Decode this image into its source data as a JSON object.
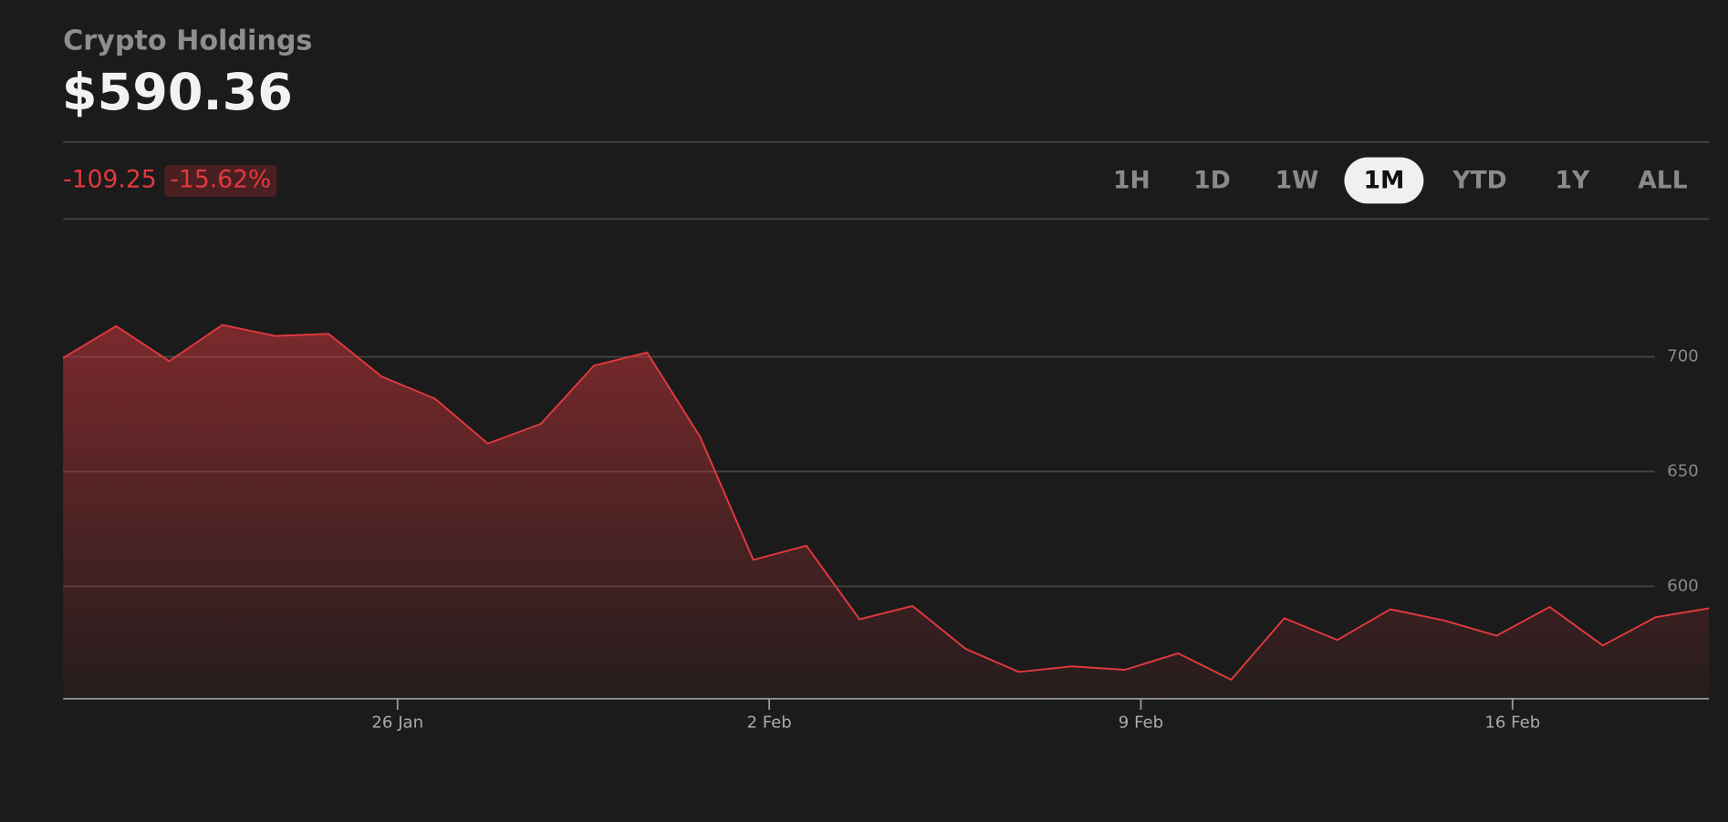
{
  "header": {
    "title": "Crypto Holdings",
    "value": "$590.36"
  },
  "change": {
    "amount": "-109.25",
    "percent": "-15.62%"
  },
  "ranges": {
    "options": [
      "1H",
      "1D",
      "1W",
      "1M",
      "YTD",
      "1Y",
      "ALL"
    ],
    "selected": "1M"
  },
  "chart_data": {
    "type": "area",
    "color": "#e0393e",
    "x": [
      0,
      1,
      2,
      3,
      4,
      5,
      6,
      7,
      8,
      9,
      10,
      11,
      12,
      13,
      14,
      15,
      16,
      17,
      18,
      19,
      20,
      21,
      22,
      23,
      24,
      25,
      26,
      27,
      28,
      29,
      30,
      31
    ],
    "values": [
      699.5,
      713.4,
      698.1,
      713.9,
      709.1,
      710,
      691.4,
      681.8,
      662.2,
      670.8,
      696.2,
      701.9,
      665.1,
      611.5,
      617.7,
      585.6,
      591.4,
      572.7,
      562.7,
      565.1,
      563.6,
      570.8,
      559.3,
      586.1,
      576.6,
      590,
      585.2,
      578.5,
      591,
      574.2,
      586.6,
      590.4
    ],
    "xlim": [
      0,
      31
    ],
    "xticks": [
      {
        "value": 6.3,
        "label": "26 Jan"
      },
      {
        "value": 13.3,
        "label": "2 Feb"
      },
      {
        "value": 20.3,
        "label": "9 Feb"
      },
      {
        "value": 27.3,
        "label": "16 Feb"
      }
    ],
    "ylim": [
      551,
      750
    ],
    "yticks": [
      600,
      650,
      700
    ],
    "grid": true
  }
}
